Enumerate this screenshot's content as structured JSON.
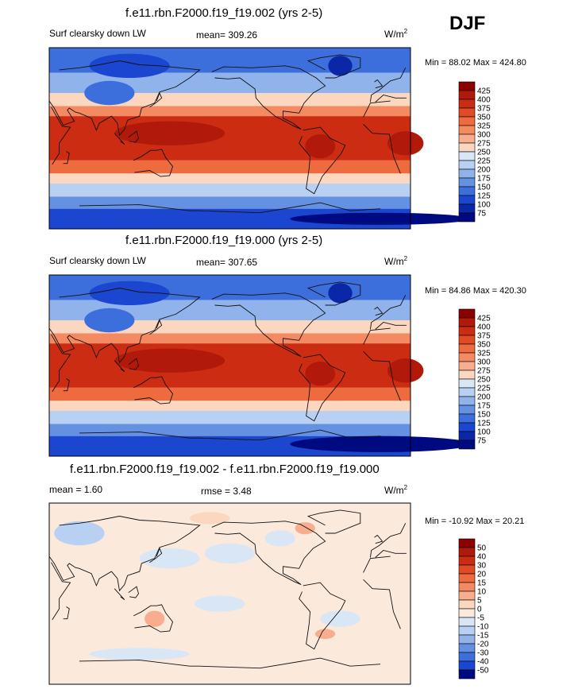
{
  "season": "DJF",
  "panels": [
    {
      "title": "f.e11.rbn.F2000.f19_f19.002 (yrs 2-5)",
      "left_label": "Surf clearsky down LW",
      "center_label": "mean= 309.26",
      "units_base": "W/m",
      "units_exp": "2",
      "minmax": "Min =  88.02 Max = 424.80",
      "colorbar": {
        "levels": [
          "425",
          "400",
          "375",
          "350",
          "325",
          "300",
          "275",
          "250",
          "225",
          "200",
          "175",
          "150",
          "125",
          "100",
          "75"
        ],
        "colors": [
          "#8b0000",
          "#b11a0a",
          "#cc2d12",
          "#e04a24",
          "#ee6a3f",
          "#f48a62",
          "#f8ae8e",
          "#fcd7c0",
          "#d9e6f6",
          "#b8d0f1",
          "#8fb3ea",
          "#6591e3",
          "#3d6fdc",
          "#1b46cf",
          "#0a27a8",
          "#000a80"
        ]
      },
      "fields": [
        {
          "kind": "band",
          "lat": [
            90,
            65
          ],
          "color": "#3d6fdc"
        },
        {
          "kind": "band",
          "lat": [
            65,
            45
          ],
          "color": "#8fb3ea"
        },
        {
          "kind": "band",
          "lat": [
            45,
            32
          ],
          "color": "#fcd7c0"
        },
        {
          "kind": "band",
          "lat": [
            32,
            22
          ],
          "color": "#f48a62"
        },
        {
          "kind": "band",
          "lat": [
            22,
            -22
          ],
          "color": "#cc2d12"
        },
        {
          "kind": "band",
          "lat": [
            -22,
            -35
          ],
          "color": "#ee6a3f"
        },
        {
          "kind": "band",
          "lat": [
            -35,
            -45
          ],
          "color": "#fcd7c0"
        },
        {
          "kind": "band",
          "lat": [
            -45,
            -58
          ],
          "color": "#b8d0f1"
        },
        {
          "kind": "band",
          "lat": [
            -58,
            -70
          ],
          "color": "#6591e3"
        },
        {
          "kind": "band",
          "lat": [
            -70,
            -90
          ],
          "color": "#1b46cf"
        },
        {
          "kind": "blob",
          "lon": 150,
          "lat": 5,
          "rx": 55,
          "ry": 12,
          "color": "#b11a0a"
        },
        {
          "kind": "blob",
          "lon": 25,
          "lat": -5,
          "rx": 18,
          "ry": 12,
          "color": "#b11a0a"
        },
        {
          "kind": "blob",
          "lon": -60,
          "lat": -8,
          "rx": 15,
          "ry": 12,
          "color": "#b11a0a"
        },
        {
          "kind": "blob",
          "lon": 90,
          "lat": 45,
          "rx": 25,
          "ry": 12,
          "color": "#3d6fdc"
        },
        {
          "kind": "blob",
          "lon": -40,
          "lat": 72,
          "rx": 12,
          "ry": 10,
          "color": "#0a27a8"
        },
        {
          "kind": "blob",
          "lon": 110,
          "lat": 72,
          "rx": 40,
          "ry": 12,
          "color": "#1b46cf"
        },
        {
          "kind": "blob",
          "lon": 0,
          "lat": -80,
          "rx": 90,
          "ry": 6,
          "color": "#000a80"
        }
      ]
    },
    {
      "title": "f.e11.rbn.F2000.f19_f19.000 (yrs 2-5)",
      "left_label": "Surf clearsky down LW",
      "center_label": "mean= 307.65",
      "units_base": "W/m",
      "units_exp": "2",
      "minmax": "Min =  84.86 Max = 420.30",
      "colorbar": {
        "levels": [
          "425",
          "400",
          "375",
          "350",
          "325",
          "300",
          "275",
          "250",
          "225",
          "200",
          "175",
          "150",
          "125",
          "100",
          "75"
        ],
        "colors": [
          "#8b0000",
          "#b11a0a",
          "#cc2d12",
          "#e04a24",
          "#ee6a3f",
          "#f48a62",
          "#f8ae8e",
          "#fcd7c0",
          "#d9e6f6",
          "#b8d0f1",
          "#8fb3ea",
          "#6591e3",
          "#3d6fdc",
          "#1b46cf",
          "#0a27a8",
          "#000a80"
        ]
      },
      "fields": [
        {
          "kind": "band",
          "lat": [
            90,
            65
          ],
          "color": "#3d6fdc"
        },
        {
          "kind": "band",
          "lat": [
            65,
            45
          ],
          "color": "#8fb3ea"
        },
        {
          "kind": "band",
          "lat": [
            45,
            32
          ],
          "color": "#fcd7c0"
        },
        {
          "kind": "band",
          "lat": [
            32,
            22
          ],
          "color": "#f48a62"
        },
        {
          "kind": "band",
          "lat": [
            22,
            -22
          ],
          "color": "#cc2d12"
        },
        {
          "kind": "band",
          "lat": [
            -22,
            -35
          ],
          "color": "#ee6a3f"
        },
        {
          "kind": "band",
          "lat": [
            -35,
            -45
          ],
          "color": "#fcd7c0"
        },
        {
          "kind": "band",
          "lat": [
            -45,
            -58
          ],
          "color": "#b8d0f1"
        },
        {
          "kind": "band",
          "lat": [
            -58,
            -70
          ],
          "color": "#6591e3"
        },
        {
          "kind": "band",
          "lat": [
            -70,
            -90
          ],
          "color": "#1b46cf"
        },
        {
          "kind": "blob",
          "lon": 150,
          "lat": 5,
          "rx": 55,
          "ry": 12,
          "color": "#b11a0a"
        },
        {
          "kind": "blob",
          "lon": 25,
          "lat": -5,
          "rx": 18,
          "ry": 12,
          "color": "#b11a0a"
        },
        {
          "kind": "blob",
          "lon": -60,
          "lat": -8,
          "rx": 15,
          "ry": 12,
          "color": "#b11a0a"
        },
        {
          "kind": "blob",
          "lon": 90,
          "lat": 45,
          "rx": 25,
          "ry": 12,
          "color": "#3d6fdc"
        },
        {
          "kind": "blob",
          "lon": -40,
          "lat": 72,
          "rx": 12,
          "ry": 10,
          "color": "#0a27a8"
        },
        {
          "kind": "blob",
          "lon": 110,
          "lat": 72,
          "rx": 40,
          "ry": 12,
          "color": "#1b46cf"
        },
        {
          "kind": "blob",
          "lon": 0,
          "lat": -78,
          "rx": 90,
          "ry": 8,
          "color": "#000a80"
        }
      ]
    },
    {
      "title": "f.e11.rbn.F2000.f19_f19.002 - f.e11.rbn.F2000.f19_f19.000",
      "left_label": "mean =   1.60",
      "center_label": "rmse =   3.48",
      "units_base": "W/m",
      "units_exp": "2",
      "minmax": "Min = -10.92 Max =  20.21",
      "colorbar": {
        "levels": [
          "50",
          "40",
          "30",
          "20",
          "15",
          "10",
          "5",
          "0",
          "-5",
          "-10",
          "-15",
          "-20",
          "-30",
          "-40",
          "-50"
        ],
        "colors": [
          "#8b0000",
          "#b11a0a",
          "#cc2d12",
          "#e04a24",
          "#ee6a3f",
          "#f48a62",
          "#f8ae8e",
          "#fcd7c0",
          "#fbe9dc",
          "#d9e6f6",
          "#b8d0f1",
          "#8fb3ea",
          "#6591e3",
          "#3d6fdc",
          "#1b46cf",
          "#000a80"
        ]
      },
      "fields": [
        {
          "kind": "band",
          "lat": [
            90,
            -90
          ],
          "color": "#fbe9dc"
        },
        {
          "kind": "blob",
          "lon": -150,
          "lat": 40,
          "rx": 25,
          "ry": 10,
          "color": "#d9e6f6"
        },
        {
          "kind": "blob",
          "lon": 150,
          "lat": 35,
          "rx": 30,
          "ry": 10,
          "color": "#d9e6f6"
        },
        {
          "kind": "blob",
          "lon": 60,
          "lat": 60,
          "rx": 25,
          "ry": 12,
          "color": "#b8d0f1"
        },
        {
          "kind": "blob",
          "lon": -100,
          "lat": 55,
          "rx": 15,
          "ry": 8,
          "color": "#d9e6f6"
        },
        {
          "kind": "blob",
          "lon": -160,
          "lat": -10,
          "rx": 25,
          "ry": 8,
          "color": "#d9e6f6"
        },
        {
          "kind": "blob",
          "lon": -40,
          "lat": -25,
          "rx": 20,
          "ry": 8,
          "color": "#d9e6f6"
        },
        {
          "kind": "blob",
          "lon": 120,
          "lat": -60,
          "rx": 50,
          "ry": 6,
          "color": "#d9e6f6"
        },
        {
          "kind": "blob",
          "lon": 135,
          "lat": -25,
          "rx": 10,
          "ry": 8,
          "color": "#f8ae8e"
        },
        {
          "kind": "blob",
          "lon": -75,
          "lat": 65,
          "rx": 10,
          "ry": 6,
          "color": "#f8ae8e"
        },
        {
          "kind": "blob",
          "lon": -170,
          "lat": 75,
          "rx": 20,
          "ry": 6,
          "color": "#fcd7c0"
        },
        {
          "kind": "blob",
          "lon": -55,
          "lat": -40,
          "rx": 10,
          "ry": 5,
          "color": "#f8ae8e"
        }
      ]
    }
  ]
}
